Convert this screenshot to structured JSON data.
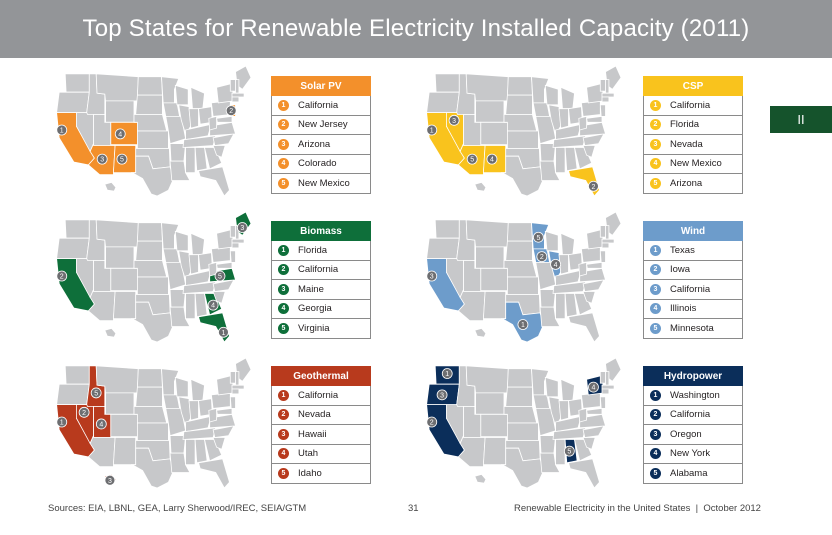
{
  "page": {
    "title": "Top States for Renewable Electricity Installed Capacity (2011)",
    "chapter": "II"
  },
  "panels": [
    {
      "key": "solar",
      "header": "Solar PV",
      "color": "#f3902b",
      "number_style": "light",
      "items": [
        "California",
        "New Jersey",
        "Arizona",
        "Colorado",
        "New Mexico"
      ]
    },
    {
      "key": "csp",
      "header": "CSP",
      "color": "#f9c31d",
      "number_style": "light",
      "items": [
        "California",
        "Florida",
        "Nevada",
        "New Mexico",
        "Arizona"
      ]
    },
    {
      "key": "biomass",
      "header": "Biomass",
      "color": "#0e6f3a",
      "number_style": "dark",
      "items": [
        "Florida",
        "California",
        "Maine",
        "Georgia",
        "Virginia"
      ]
    },
    {
      "key": "wind",
      "header": "Wind",
      "color": "#6d9ccb",
      "number_style": "light",
      "items": [
        "Texas",
        "Iowa",
        "California",
        "Illinois",
        "Minnesota"
      ]
    },
    {
      "key": "geothermal",
      "header": "Geothermal",
      "color": "#b83a1d",
      "number_style": "dark",
      "items": [
        "California",
        "Nevada",
        "Hawaii",
        "Utah",
        "Idaho"
      ]
    },
    {
      "key": "hydro",
      "header": "Hydropower",
      "color": "#0b2e5a",
      "number_style": "dark",
      "items": [
        "Washington",
        "California",
        "Oregon",
        "New York",
        "Alabama"
      ]
    }
  ],
  "map": {
    "base_color": "#c7c8ca",
    "border_color": "#ffffff",
    "marker_color": "#6d6e71",
    "highlights": {
      "solar": [
        "CA",
        "NJ",
        "AZ",
        "CO",
        "NM"
      ],
      "csp": [
        "CA",
        "FL",
        "NV",
        "NM",
        "AZ"
      ],
      "biomass": [
        "FL",
        "CA",
        "ME",
        "GA",
        "VA"
      ],
      "wind": [
        "TX",
        "IA",
        "CA",
        "IL",
        "MN"
      ],
      "geothermal": [
        "CA",
        "NV",
        "HI",
        "UT",
        "ID"
      ],
      "hydro": [
        "WA",
        "CA",
        "OR",
        "NY",
        "AL"
      ]
    }
  },
  "footer": {
    "sources": "Sources: EIA, LBNL, GEA, Larry Sherwood/IREC, SEIA/GTM",
    "page_number": "31",
    "publication": "Renewable Electricity in the United States  |  October 2012"
  }
}
